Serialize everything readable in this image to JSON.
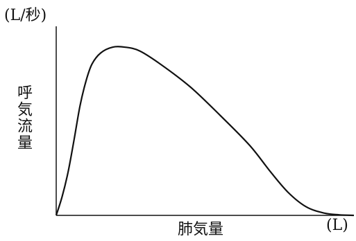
{
  "chart_data": {
    "type": "line",
    "title": "",
    "ylabel": "呼気流量",
    "yunit": "(L/秒)",
    "xlabel": "肺気量",
    "xunit": "(L)",
    "xticks": [],
    "yticks": [],
    "grid": false,
    "legend": "none",
    "xlim": [
      0,
      10
    ],
    "ylim": [
      0,
      10
    ],
    "series": [
      {
        "color": "#111111",
        "points": [
          [
            0.0,
            0.0
          ],
          [
            0.2,
            1.0
          ],
          [
            0.4,
            2.3
          ],
          [
            0.6,
            4.0
          ],
          [
            0.8,
            5.8
          ],
          [
            1.0,
            7.1
          ],
          [
            1.2,
            8.0
          ],
          [
            1.5,
            8.6
          ],
          [
            1.9,
            8.9
          ],
          [
            2.3,
            8.9
          ],
          [
            2.8,
            8.7
          ],
          [
            3.5,
            8.0
          ],
          [
            4.5,
            6.8
          ],
          [
            5.5,
            5.3
          ],
          [
            6.5,
            3.7
          ],
          [
            7.2,
            2.3
          ],
          [
            7.8,
            1.2
          ],
          [
            8.4,
            0.45
          ],
          [
            9.0,
            0.12
          ],
          [
            9.5,
            0.03
          ],
          [
            10.0,
            0.0
          ]
        ]
      }
    ]
  }
}
